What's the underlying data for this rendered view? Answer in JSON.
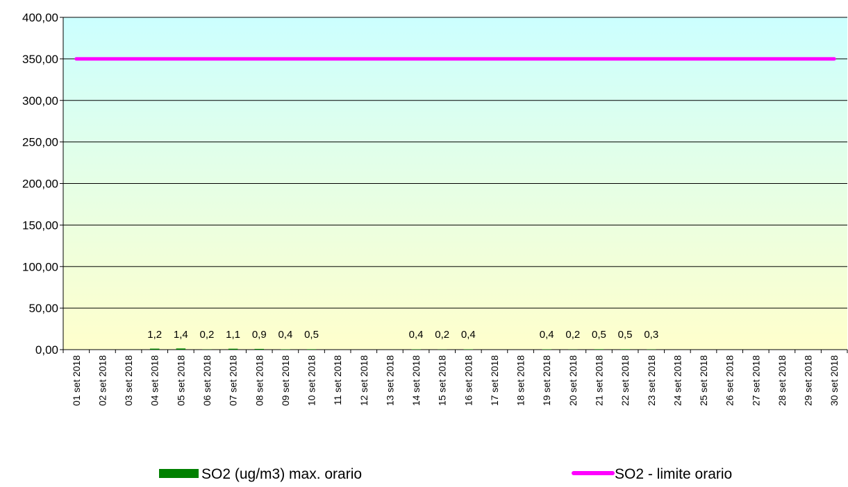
{
  "chart_data": {
    "type": "bar",
    "categories": [
      "01 set 2018",
      "02 set 2018",
      "03 set 2018",
      "04 set 2018",
      "05 set 2018",
      "06 set 2018",
      "07 set 2018",
      "08 set 2018",
      "09 set 2018",
      "10 set 2018",
      "11 set 2018",
      "12 set 2018",
      "13 set 2018",
      "14 set 2018",
      "15 set 2018",
      "16 set 2018",
      "17 set 2018",
      "18 set 2018",
      "19 set 2018",
      "20 set 2018",
      "21 set 2018",
      "22 set 2018",
      "23 set 2018",
      "24 set 2018",
      "25 set 2018",
      "26 set 2018",
      "27 set 2018",
      "28 set 2018",
      "29 set 2018",
      "30 set 2018"
    ],
    "series": [
      {
        "name": "SO2 (ug/m3) max. orario",
        "kind": "bar",
        "color": "#008000",
        "values": [
          null,
          null,
          null,
          1.2,
          1.4,
          0.2,
          1.1,
          0.9,
          0.4,
          0.5,
          null,
          null,
          null,
          0.4,
          0.2,
          0.4,
          null,
          null,
          0.4,
          0.2,
          0.5,
          0.5,
          0.3,
          null,
          null,
          null,
          null,
          null,
          null,
          null
        ],
        "labels": [
          "",
          "",
          "",
          "1,2",
          "1,4",
          "0,2",
          "1,1",
          "0,9",
          "0,4",
          "0,5",
          "",
          "",
          "",
          "0,4",
          "0,2",
          "0,4",
          "",
          "",
          "0,4",
          "0,2",
          "0,5",
          "0,5",
          "0,3",
          "",
          "",
          "",
          "",
          "",
          "",
          ""
        ]
      },
      {
        "name": "SO2 - limite orario",
        "kind": "line",
        "color": "#ff00ff",
        "values": [
          350,
          350,
          350,
          350,
          350,
          350,
          350,
          350,
          350,
          350,
          350,
          350,
          350,
          350,
          350,
          350,
          350,
          350,
          350,
          350,
          350,
          350,
          350,
          350,
          350,
          350,
          350,
          350,
          350,
          350
        ]
      }
    ],
    "y_ticks": [
      "0,00",
      "50,00",
      "100,00",
      "150,00",
      "200,00",
      "250,00",
      "300,00",
      "350,00",
      "400,00"
    ],
    "ylim": [
      0,
      400
    ],
    "grid": true,
    "legend_position": "bottom",
    "background_gradient": {
      "top": "#ccffff",
      "bottom": "#ffffcc"
    }
  }
}
